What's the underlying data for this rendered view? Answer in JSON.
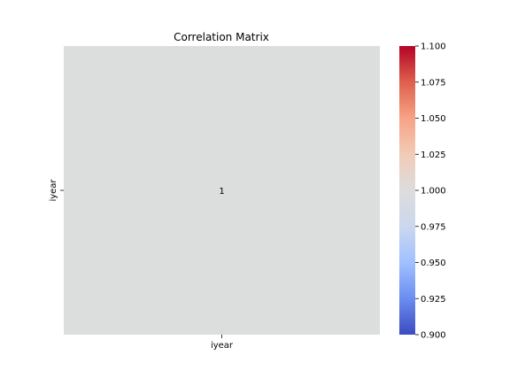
{
  "chart_data": {
    "type": "heatmap",
    "title": "Correlation Matrix",
    "x_categories": [
      "iyear"
    ],
    "y_categories": [
      "iyear"
    ],
    "values": [
      [
        1
      ]
    ],
    "annotations": [
      [
        "1"
      ]
    ],
    "colormap": "coolwarm",
    "colorbar": {
      "vmin": 0.9,
      "vmax": 1.1,
      "ticks": [
        "0.900",
        "0.925",
        "0.950",
        "0.975",
        "1.000",
        "1.025",
        "1.050",
        "1.075",
        "1.100"
      ],
      "stops": [
        "#3b4cc0",
        "#6b8df0",
        "#a1c0ff",
        "#cbd8ee",
        "#dddcdc",
        "#f2cbb7",
        "#f6a385",
        "#de604d",
        "#b40426"
      ]
    },
    "cell_color": "#dcdddd",
    "grid": false
  }
}
